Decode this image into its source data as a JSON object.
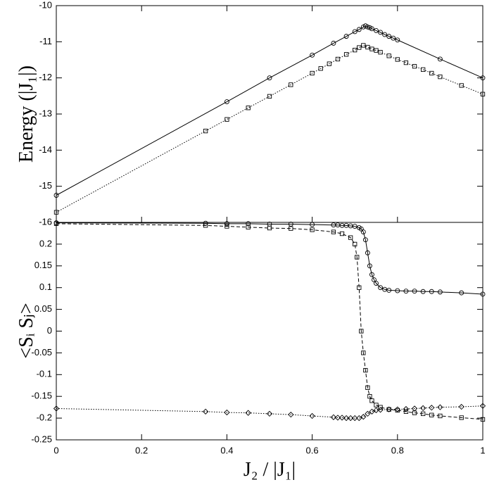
{
  "chart_data": [
    {
      "type": "line",
      "ylabel": "Energy (|J₁|)",
      "xlim": [
        0,
        1
      ],
      "ylim": [
        -16,
        -10
      ],
      "yticks": [
        -16,
        -15,
        -14,
        -13,
        -12,
        -11,
        -10
      ],
      "series": [
        {
          "marker": "circle",
          "linestyle": "solid",
          "color": "#000000",
          "x": [
            0,
            0.4,
            0.5,
            0.6,
            0.65,
            0.68,
            0.7,
            0.71,
            0.72,
            0.725,
            0.73,
            0.735,
            0.74,
            0.75,
            0.76,
            0.77,
            0.78,
            0.79,
            0.8,
            0.9,
            1
          ],
          "values": [
            -15.25,
            -12.66,
            -12.0,
            -11.37,
            -11.04,
            -10.85,
            -10.72,
            -10.66,
            -10.59,
            -10.56,
            -10.59,
            -10.61,
            -10.64,
            -10.69,
            -10.74,
            -10.8,
            -10.85,
            -10.9,
            -10.95,
            -11.48,
            -12.0
          ]
        },
        {
          "marker": "square",
          "linestyle": "dotted",
          "color": "#000000",
          "x": [
            0,
            0.35,
            0.4,
            0.45,
            0.5,
            0.55,
            0.6,
            0.62,
            0.64,
            0.66,
            0.68,
            0.7,
            0.71,
            0.72,
            0.73,
            0.74,
            0.75,
            0.76,
            0.78,
            0.8,
            0.82,
            0.84,
            0.86,
            0.88,
            0.9,
            0.95,
            1
          ],
          "values": [
            -15.72,
            -13.47,
            -13.15,
            -12.83,
            -12.51,
            -12.19,
            -11.87,
            -11.74,
            -11.61,
            -11.48,
            -11.35,
            -11.23,
            -11.16,
            -11.1,
            -11.15,
            -11.2,
            -11.24,
            -11.29,
            -11.39,
            -11.49,
            -11.58,
            -11.68,
            -11.77,
            -11.87,
            -11.97,
            -12.21,
            -12.45
          ]
        }
      ]
    },
    {
      "type": "line",
      "ylabel": "<Sᵢ Sⱼ>",
      "xlabel": "J₂ / |J₁|",
      "xlim": [
        0,
        1
      ],
      "ylim": [
        -0.25,
        0.25
      ],
      "xticks": [
        0,
        0.2,
        0.4,
        0.6,
        0.8,
        1
      ],
      "yticks": [
        -0.25,
        -0.2,
        -0.15,
        -0.1,
        -0.05,
        0,
        0.05,
        0.1,
        0.15,
        0.2
      ],
      "series": [
        {
          "marker": "circle",
          "linestyle": "solid",
          "color": "#000000",
          "x": [
            0,
            0.35,
            0.4,
            0.45,
            0.5,
            0.55,
            0.6,
            0.65,
            0.66,
            0.67,
            0.68,
            0.69,
            0.7,
            0.71,
            0.715,
            0.72,
            0.725,
            0.73,
            0.735,
            0.74,
            0.745,
            0.75,
            0.76,
            0.77,
            0.78,
            0.8,
            0.82,
            0.84,
            0.86,
            0.88,
            0.9,
            0.95,
            1
          ],
          "values": [
            0.249,
            0.248,
            0.247,
            0.247,
            0.246,
            0.246,
            0.245,
            0.244,
            0.244,
            0.243,
            0.243,
            0.242,
            0.241,
            0.238,
            0.235,
            0.228,
            0.21,
            0.18,
            0.15,
            0.13,
            0.118,
            0.11,
            0.1,
            0.096,
            0.094,
            0.093,
            0.092,
            0.092,
            0.091,
            0.091,
            0.09,
            0.088,
            0.085
          ]
        },
        {
          "marker": "square",
          "linestyle": "dashed",
          "color": "#000000",
          "x": [
            0,
            0.35,
            0.4,
            0.45,
            0.5,
            0.55,
            0.6,
            0.65,
            0.67,
            0.69,
            0.7,
            0.705,
            0.71,
            0.715,
            0.72,
            0.725,
            0.73,
            0.735,
            0.74,
            0.75,
            0.76,
            0.78,
            0.8,
            0.82,
            0.84,
            0.86,
            0.88,
            0.9,
            0.95,
            1
          ],
          "values": [
            0.247,
            0.243,
            0.241,
            0.239,
            0.237,
            0.236,
            0.233,
            0.228,
            0.224,
            0.215,
            0.2,
            0.17,
            0.1,
            0.0,
            -0.05,
            -0.09,
            -0.13,
            -0.15,
            -0.16,
            -0.17,
            -0.175,
            -0.18,
            -0.182,
            -0.185,
            -0.188,
            -0.19,
            -0.193,
            -0.195,
            -0.199,
            -0.203
          ]
        },
        {
          "marker": "diamond",
          "linestyle": "dotted",
          "color": "#000000",
          "x": [
            0,
            0.35,
            0.4,
            0.45,
            0.5,
            0.55,
            0.6,
            0.65,
            0.66,
            0.67,
            0.68,
            0.69,
            0.7,
            0.71,
            0.72,
            0.73,
            0.74,
            0.75,
            0.76,
            0.78,
            0.8,
            0.82,
            0.84,
            0.86,
            0.88,
            0.9,
            0.95,
            1
          ],
          "values": [
            -0.178,
            -0.185,
            -0.187,
            -0.188,
            -0.19,
            -0.192,
            -0.195,
            -0.198,
            -0.199,
            -0.199,
            -0.2,
            -0.2,
            -0.2,
            -0.2,
            -0.197,
            -0.19,
            -0.185,
            -0.182,
            -0.181,
            -0.18,
            -0.18,
            -0.179,
            -0.178,
            -0.177,
            -0.176,
            -0.175,
            -0.174,
            -0.172
          ]
        }
      ]
    }
  ]
}
